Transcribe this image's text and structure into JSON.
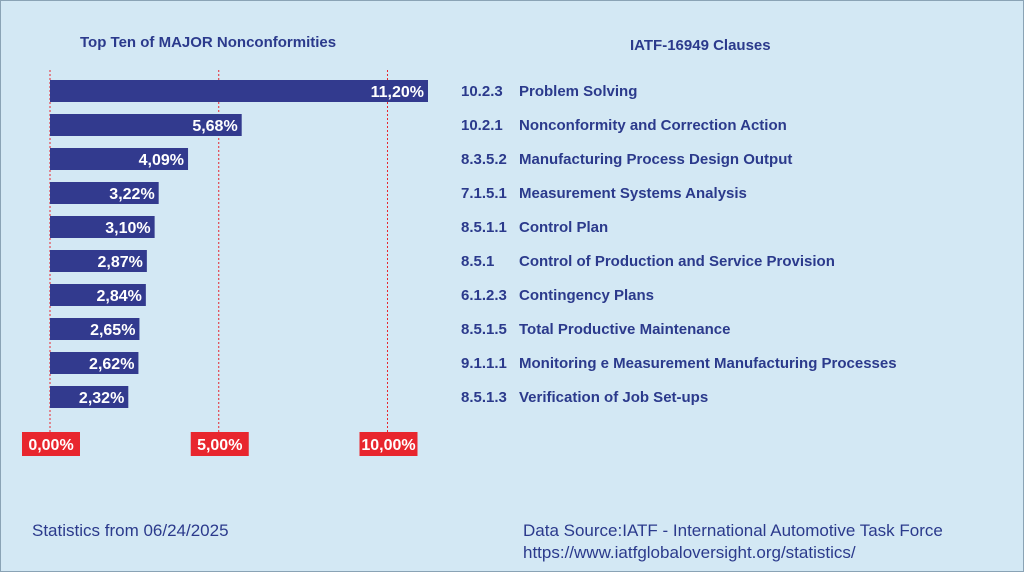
{
  "colors": {
    "background": "#d3e8f4",
    "bar": "#323a8e",
    "text": "#2b3a8c",
    "tick_label_bg": "#e8262e",
    "gridline": "#e8262e"
  },
  "chart_title": "Top Ten of MAJOR Nonconformities",
  "clauses_title": "IATF-16949 Clauses",
  "clauses": [
    {
      "code": "10.2.3",
      "name": "Problem Solving"
    },
    {
      "code": "10.2.1",
      "name": "Nonconformity and Correction Action"
    },
    {
      "code": "8.3.5.2",
      "name": "Manufacturing Process Design Output"
    },
    {
      "code": "7.1.5.1",
      "name": "Measurement Systems Analysis"
    },
    {
      "code": "8.5.1.1",
      "name": "Control Plan"
    },
    {
      "code": "8.5.1",
      "name": "Control of Production and Service Provision"
    },
    {
      "code": "6.1.2.3",
      "name": "Contingency Plans"
    },
    {
      "code": "8.5.1.5",
      "name": "Total Productive Maintenance"
    },
    {
      "code": "9.1.1.1",
      "name": "Monitoring e Measurement Manufacturing Processes"
    },
    {
      "code": "8.5.1.3",
      "name": "Verification of Job Set-ups"
    }
  ],
  "chart_data": {
    "type": "bar",
    "orientation": "horizontal",
    "categories": [
      "10.2.3",
      "10.2.1",
      "8.3.5.2",
      "7.1.5.1",
      "8.5.1.1",
      "8.5.1",
      "6.1.2.3",
      "8.5.1.5",
      "9.1.1.1",
      "8.5.1.3"
    ],
    "values": [
      11.2,
      5.68,
      4.09,
      3.22,
      3.1,
      2.87,
      2.84,
      2.65,
      2.62,
      2.32
    ],
    "value_labels": [
      "11,20%",
      "5,68%",
      "4,09%",
      "3,22%",
      "3,10%",
      "2,87%",
      "2,84%",
      "2,65%",
      "2,62%",
      "2,32%"
    ],
    "title": "Top Ten of MAJOR Nonconformities",
    "xlim": [
      0,
      11.2
    ],
    "x_ticks": [
      0,
      5,
      10
    ],
    "x_tick_labels": [
      "0,00%",
      "5,00%",
      "10,00%"
    ],
    "grid": true
  },
  "footer": {
    "stats_date": "Statistics from 06/24/2025",
    "source_line1": "Data Source:IATF - International Automotive Task Force",
    "source_line2": "https://www.iatfglobaloversight.org/statistics/"
  }
}
